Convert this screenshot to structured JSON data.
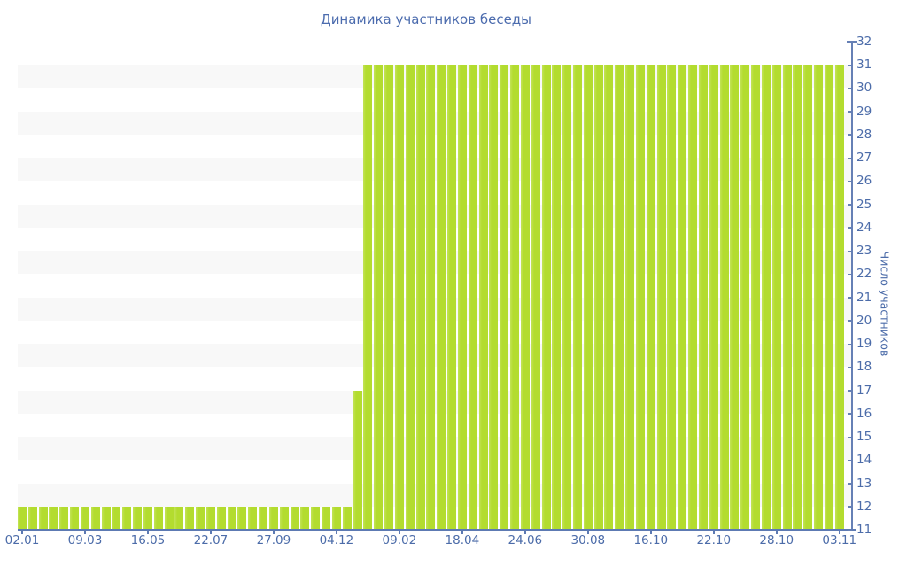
{
  "title": "Динамика участников беседы",
  "colors": {
    "bar": "#b3dc2f",
    "bar_highlight": "#c3e357",
    "axis": "#5d7ab3",
    "text": "#4c6ca9",
    "stripe_gray": "#f8f8f8",
    "background": "#ffffff"
  },
  "chart_data": {
    "type": "bar",
    "title": "Динамика участников беседы",
    "xlabel": "",
    "ylabel": "Число участников",
    "ylim": [
      11,
      32
    ],
    "y_tick_step": 1,
    "grid": "alternating 1-unit horizontal stripes (white / light gray)",
    "legend": "none",
    "y_axis_side": "right",
    "n_bars": 79,
    "values": [
      12,
      12,
      12,
      12,
      12,
      12,
      12,
      12,
      12,
      12,
      12,
      12,
      12,
      12,
      12,
      12,
      12,
      12,
      12,
      12,
      12,
      12,
      12,
      12,
      12,
      12,
      12,
      12,
      12,
      12,
      12,
      12,
      17,
      31,
      31,
      31,
      31,
      31,
      31,
      31,
      31,
      31,
      31,
      31,
      31,
      31,
      31,
      31,
      31,
      31,
      31,
      31,
      31,
      31,
      31,
      31,
      31,
      31,
      31,
      31,
      31,
      31,
      31,
      31,
      31,
      31,
      31,
      31,
      31,
      31,
      31,
      31,
      31,
      31,
      31,
      31,
      31,
      31,
      31
    ],
    "x_ticks": [
      {
        "index": 0,
        "label": "02.01"
      },
      {
        "index": 6,
        "label": "09.03"
      },
      {
        "index": 12,
        "label": "16.05"
      },
      {
        "index": 18,
        "label": "22.07"
      },
      {
        "index": 24,
        "label": "27.09"
      },
      {
        "index": 30,
        "label": "04.12"
      },
      {
        "index": 36,
        "label": "09.02"
      },
      {
        "index": 42,
        "label": "18.04"
      },
      {
        "index": 48,
        "label": "24.06"
      },
      {
        "index": 54,
        "label": "30.08"
      },
      {
        "index": 60,
        "label": "16.10"
      },
      {
        "index": 66,
        "label": "22.10"
      },
      {
        "index": 72,
        "label": "28.10"
      },
      {
        "index": 78,
        "label": "03.11"
      }
    ]
  }
}
